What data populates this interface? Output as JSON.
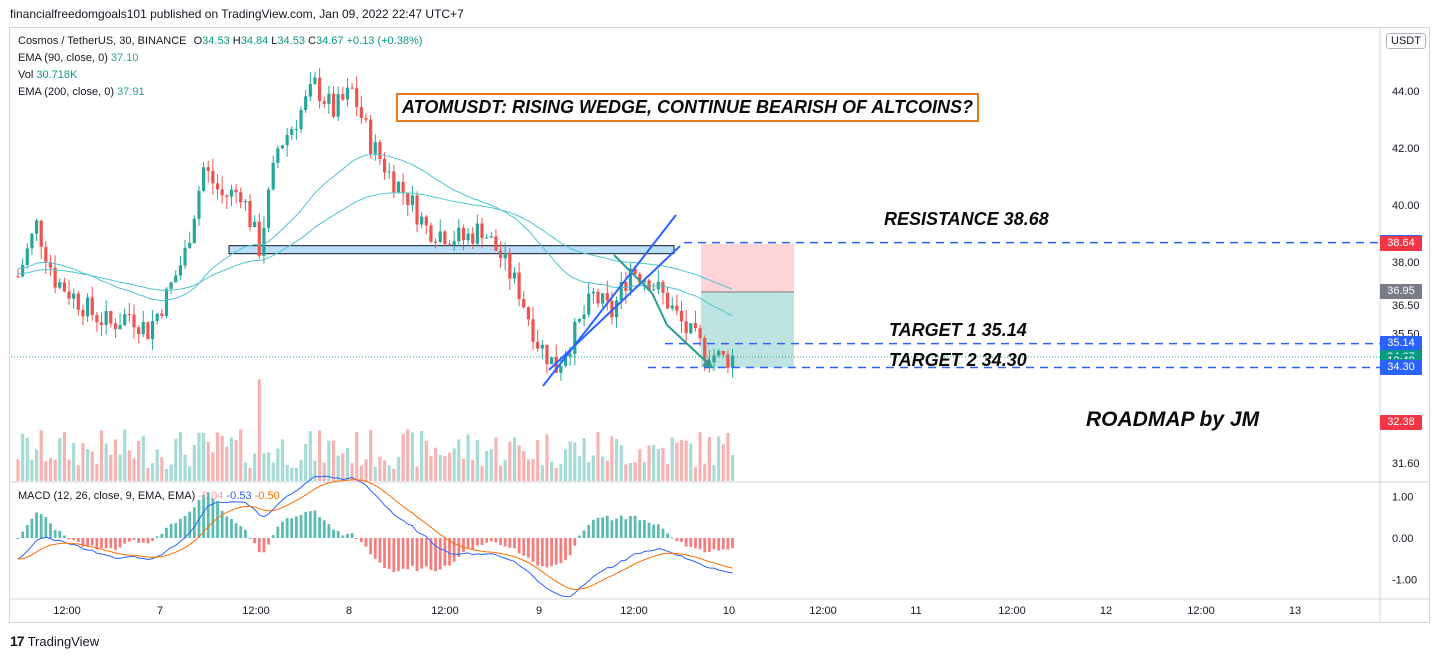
{
  "publisher_line": "financialfreedomgoals101 published on TradingView.com, Jan 09, 2022 22:47 UTC+7",
  "legend": {
    "symbol": "Cosmos / TetherUS, 30, BINANCE",
    "o_label": "O",
    "o": "34.53",
    "h_label": "H",
    "h": "34.84",
    "l_label": "L",
    "l": "34.53",
    "c_label": "C",
    "c": "34.67",
    "change": "+0.13 (+0.38%)",
    "ema90_label": "EMA (90, close, 0)",
    "ema90": "37.10",
    "vol_label": "Vol",
    "vol": "30.718K",
    "ema200_label": "EMA (200, close, 0)",
    "ema200": "37.91"
  },
  "macd_legend": {
    "label": "MACD (12, 26, close, 9, EMA, EMA)",
    "hist": "-0.04",
    "macd": "-0.53",
    "signal": "-0.50"
  },
  "headline": "ATOMUSDT: RISING WEDGE, CONTINUE BEARISH OF ALTCOINS?",
  "annotations": {
    "resistance": "RESISTANCE 38.68",
    "target1": "TARGET 1  35.14",
    "target2": "TARGET 2  34.30",
    "roadmap": "ROADMAP by JM"
  },
  "currency": "USDT",
  "colors": {
    "up": "#26a69a",
    "down": "#ef5350",
    "ema": "#4dc6d0",
    "wedge": "#2962ff",
    "dash": "#2962ff",
    "headline_border": "#e0791d",
    "tp_zone": "#b2dfdb",
    "sl_zone": "#ffcdd2"
  },
  "price_tags": [
    {
      "text": "38.68",
      "color": "#2962ff",
      "price": 38.68
    },
    {
      "text": "38.64",
      "color": "#f23645",
      "price": 38.64
    },
    {
      "text": "36.95",
      "color": "#787b86",
      "price": 36.95
    },
    {
      "text": "35.14",
      "color": "#2962ff",
      "price": 35.14
    },
    {
      "text": "34.67",
      "color": "#089981",
      "price": 34.67
    },
    {
      "text": "12:49",
      "color": "#089981",
      "price": 34.5
    },
    {
      "text": "34.32",
      "color": "#089981",
      "price": 34.32
    },
    {
      "text": "34.30",
      "color": "#2962ff",
      "price": 34.3
    },
    {
      "text": "32.38",
      "color": "#f23645",
      "price": 32.38
    }
  ],
  "chart_data": {
    "type": "candlestick",
    "symbol": "ATOMUSDT",
    "interval": "30",
    "price_axis": {
      "ticks": [
        "44.00",
        "42.00",
        "40.00",
        "38.00",
        "36.50",
        "35.50",
        "31.60"
      ],
      "tick_values": [
        44.0,
        42.0,
        40.0,
        38.0,
        36.5,
        35.5,
        31.6
      ],
      "ylim": [
        31.2,
        46.2
      ]
    },
    "time_axis": {
      "ticks": [
        "12:00",
        "7",
        "12:00",
        "8",
        "12:00",
        "9",
        "12:00",
        "10",
        "12:00",
        "11",
        "12:00",
        "12",
        "12:00",
        "13"
      ]
    },
    "macd_axis": {
      "ticks": [
        "1.00",
        "0.00",
        "-1.00"
      ],
      "tick_values": [
        1.0,
        0.0,
        -1.0
      ],
      "ylim": [
        -1.4,
        1.25
      ]
    },
    "last_price": 34.67,
    "levels": {
      "resistance": 38.68,
      "target1": 35.14,
      "target2": 34.3,
      "position_stop": 38.64,
      "position_entry": 36.95
    },
    "close_path": [
      {
        "x": 0,
        "y": 37.5
      },
      {
        "x": 4,
        "y": 39.3
      },
      {
        "x": 8,
        "y": 37.4
      },
      {
        "x": 12,
        "y": 36.8
      },
      {
        "x": 16,
        "y": 36.2
      },
      {
        "x": 20,
        "y": 35.8
      },
      {
        "x": 24,
        "y": 36.2
      },
      {
        "x": 28,
        "y": 35.6
      },
      {
        "x": 32,
        "y": 36.8
      },
      {
        "x": 36,
        "y": 38.3
      },
      {
        "x": 40,
        "y": 41.3
      },
      {
        "x": 44,
        "y": 40.3
      },
      {
        "x": 48,
        "y": 40.5
      },
      {
        "x": 52,
        "y": 38.5
      },
      {
        "x": 56,
        "y": 42.0
      },
      {
        "x": 60,
        "y": 43.0
      },
      {
        "x": 64,
        "y": 44.2
      },
      {
        "x": 68,
        "y": 43.3
      },
      {
        "x": 72,
        "y": 44.0
      },
      {
        "x": 76,
        "y": 42.2
      },
      {
        "x": 80,
        "y": 41.1
      },
      {
        "x": 84,
        "y": 40.3
      },
      {
        "x": 88,
        "y": 39.2
      },
      {
        "x": 92,
        "y": 39.0
      },
      {
        "x": 96,
        "y": 38.8
      },
      {
        "x": 100,
        "y": 39.2
      },
      {
        "x": 104,
        "y": 38.2
      },
      {
        "x": 108,
        "y": 37.0
      },
      {
        "x": 112,
        "y": 35.2
      },
      {
        "x": 116,
        "y": 34.3
      },
      {
        "x": 120,
        "y": 35.5
      },
      {
        "x": 124,
        "y": 36.8
      },
      {
        "x": 128,
        "y": 36.2
      },
      {
        "x": 132,
        "y": 37.8
      },
      {
        "x": 136,
        "y": 37.4
      },
      {
        "x": 140,
        "y": 36.6
      },
      {
        "x": 144,
        "y": 35.6
      },
      {
        "x": 148,
        "y": 34.9
      },
      {
        "x": 152,
        "y": 34.6
      },
      {
        "x": 154,
        "y": 34.67
      }
    ]
  }
}
